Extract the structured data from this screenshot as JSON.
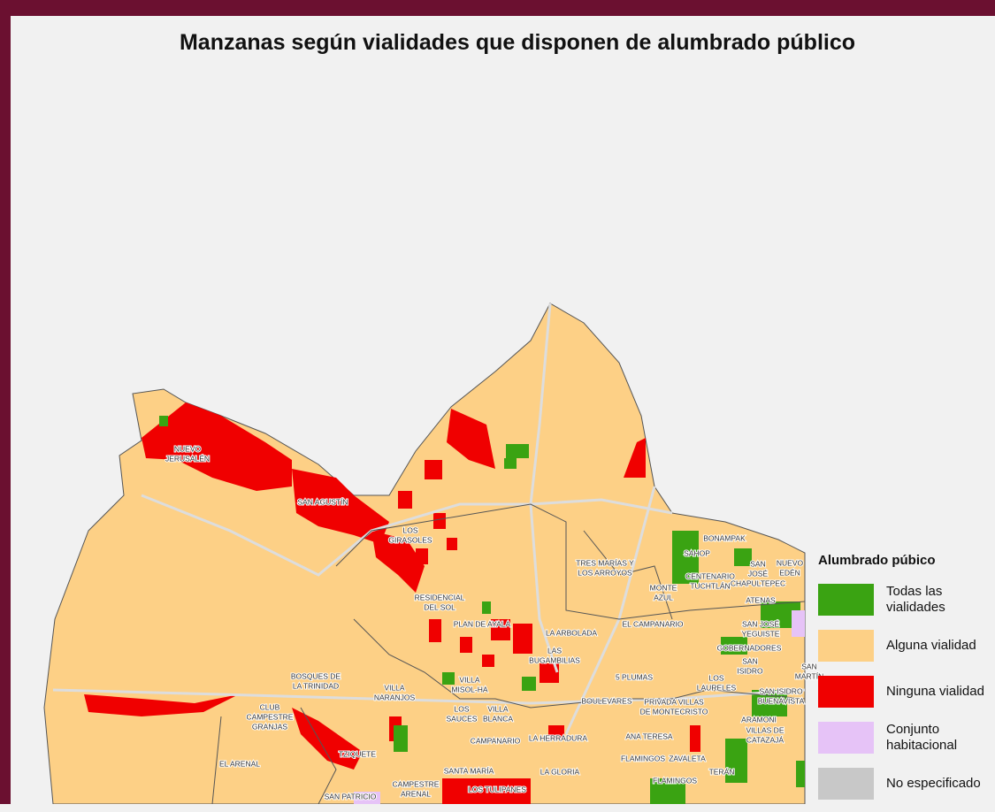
{
  "title": "Manzanas según vialidades que disponen de alumbrado público",
  "legend": {
    "title": "Alumbrado púbico",
    "items": [
      {
        "label": [
          "Todas las",
          "vialidades"
        ],
        "color": "#3aa312"
      },
      {
        "label": [
          "Alguna vialidad"
        ],
        "color": "#fdd086"
      },
      {
        "label": [
          "Ninguna vialidad"
        ],
        "color": "#f00000"
      },
      {
        "label": [
          "Conjunto",
          "habitacional"
        ],
        "color": "#e6c3f7"
      },
      {
        "label": [
          "No especificado"
        ],
        "color": "#c8c8c8"
      }
    ]
  },
  "map_labels": [
    [
      "NUEVO",
      "JERUSALÉN"
    ],
    [
      "SAN AGUSTÍN"
    ],
    [
      "LOS",
      "GIRASOLES"
    ],
    [
      "RESIDENCIAL",
      "DEL SOL"
    ],
    [
      "PLAN DE AYALA"
    ],
    [
      "TRES MARÍAS Y",
      "LOS ARROYOS"
    ],
    [
      "BONAMPAK"
    ],
    [
      "SAHOP"
    ],
    [
      "NUEVO",
      "EDÉN"
    ],
    [
      "SAN",
      "JOSÉ",
      "CHAPULTEPEC"
    ],
    [
      "MONTE",
      "AZUL"
    ],
    [
      "CENTENARIO",
      "TUCHTLÁN"
    ],
    [
      "ATENAS"
    ],
    [
      "EL CAMPANARIO"
    ],
    [
      "SAN JOSÉ",
      "YEGUISTE"
    ],
    [
      "LA ARBOLADA"
    ],
    [
      "LAS",
      "BUGAMBILIAS"
    ],
    [
      "GOBERNADORES"
    ],
    [
      "SAN",
      "ISIDRO"
    ],
    [
      "SAN",
      "MARTÍN"
    ],
    [
      "5 PLUMAS"
    ],
    [
      "LOS",
      "LAURELES"
    ],
    [
      "SAN ISIDRO",
      "BUENAVISTA"
    ],
    [
      "BOSQUES DE",
      "LA TRINIDAD"
    ],
    [
      "VILLA",
      "NARANJOS"
    ],
    [
      "VILLA",
      "MISOL-HA"
    ],
    [
      "BOULEVARES"
    ],
    [
      "PRIVADA VILLAS",
      "DE MONTECRISTO"
    ],
    [
      "CLUB",
      "CAMPESTRE",
      "GRANJAS"
    ],
    [
      "LOS",
      "SAUCES"
    ],
    [
      "VILLA",
      "BLANCA"
    ],
    [
      "ARAMONI"
    ],
    [
      "VILLAS DE",
      "CATAZAJÁ"
    ],
    [
      "CAMPANARIO"
    ],
    [
      "LA HERRADURA"
    ],
    [
      "ANA TERESA"
    ],
    [
      "TZIQUETE"
    ],
    [
      "FLAMINGOS"
    ],
    [
      "ZAVALETA"
    ],
    [
      "EL ARENAL"
    ],
    [
      "SANTA MARÍA"
    ],
    [
      "LA GLORIA"
    ],
    [
      "TERÁN"
    ],
    [
      "FLAMINGOS"
    ],
    [
      "CAMPESTRE",
      "ARENAL"
    ],
    [
      "LOS TULIPANES"
    ],
    [
      "SAN PATRICIO"
    ]
  ]
}
